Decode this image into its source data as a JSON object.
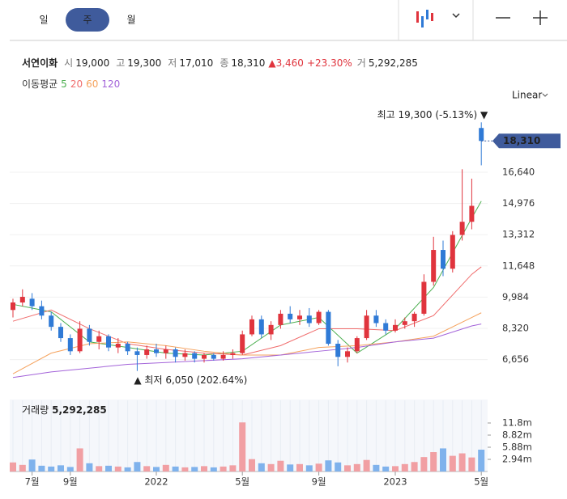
{
  "tabs": {
    "items": [
      "일",
      "주",
      "월"
    ],
    "selected": 1
  },
  "quote": {
    "name": "서연이화",
    "fields": [
      {
        "label": "시",
        "value": "19,000"
      },
      {
        "label": "고",
        "value": "19,300"
      },
      {
        "label": "저",
        "value": "17,010"
      },
      {
        "label": "종",
        "value": "18,310"
      }
    ],
    "change": "▲3,460",
    "change_pct": "+23.30%",
    "volume_label": "거",
    "volume": "5,292,285"
  },
  "ma_legend": "이동평균",
  "scale_button": "Linear",
  "chart_data": {
    "type": "candlestick",
    "categories": [
      null,
      null,
      "7월",
      null,
      null,
      null,
      "9월",
      null,
      null,
      null,
      null,
      null,
      null,
      null,
      null,
      "2022",
      null,
      null,
      null,
      null,
      null,
      null,
      null,
      null,
      "5월",
      null,
      null,
      null,
      null,
      null,
      null,
      null,
      "9월",
      null,
      null,
      null,
      null,
      null,
      null,
      null,
      "2023",
      null,
      null,
      null,
      null,
      null,
      null,
      null,
      null,
      "5월"
    ],
    "open": [
      9300,
      9700,
      9900,
      9500,
      9000,
      8400,
      7800,
      7100,
      8300,
      7600,
      7900,
      7300,
      7500,
      7100,
      6900,
      7200,
      7000,
      7200,
      6800,
      7000,
      6700,
      6900,
      6700,
      6900,
      7000,
      8000,
      8800,
      8000,
      8500,
      9100,
      8800,
      9000,
      8600,
      9200,
      7500,
      6800,
      7100,
      7800,
      9000,
      8600,
      8200,
      8500,
      8700,
      9100,
      10800,
      12500,
      11500,
      13300,
      14000,
      19000
    ],
    "high": [
      9900,
      10400,
      10200,
      9800,
      9200,
      8600,
      8000,
      8700,
      8500,
      8200,
      8000,
      7800,
      7600,
      7300,
      7400,
      7500,
      7400,
      7300,
      7200,
      7100,
      7000,
      7000,
      7100,
      7200,
      8200,
      9000,
      9000,
      8700,
      9300,
      9500,
      9300,
      9400,
      9300,
      9300,
      7700,
      7300,
      7900,
      9300,
      9300,
      8800,
      8800,
      8900,
      9200,
      11200,
      13200,
      13000,
      13500,
      16800,
      16300,
      19300
    ],
    "low": [
      8900,
      9500,
      9300,
      8800,
      8200,
      7600,
      6900,
      7000,
      7400,
      7200,
      7100,
      7000,
      6900,
      6050,
      6700,
      6800,
      6700,
      6500,
      6600,
      6500,
      6500,
      6600,
      6600,
      6700,
      6900,
      7900,
      7800,
      7700,
      8300,
      8600,
      8500,
      8400,
      8500,
      7400,
      6300,
      6500,
      7000,
      7700,
      8400,
      8000,
      8100,
      8300,
      8400,
      9000,
      10600,
      11100,
      11300,
      13000,
      13600,
      17010
    ],
    "close": [
      9700,
      10000,
      9500,
      9000,
      8400,
      7800,
      7100,
      8300,
      7600,
      7900,
      7300,
      7500,
      7100,
      6900,
      7200,
      7000,
      7200,
      6800,
      7000,
      6700,
      6900,
      6700,
      6900,
      7000,
      8000,
      8800,
      8000,
      8500,
      9100,
      8800,
      9000,
      8600,
      9200,
      7500,
      6800,
      7100,
      7800,
      9000,
      8600,
      8200,
      8500,
      8700,
      9100,
      10800,
      12500,
      11500,
      13300,
      14000,
      14850,
      18310
    ],
    "up_color": "#e0343d",
    "down_color": "#2f7ad6",
    "ylim": [
      4915,
      20218
    ],
    "yticks": [
      {
        "value": 6656,
        "label": "6,656"
      },
      {
        "value": 8320,
        "label": "8,320"
      },
      {
        "value": 9984,
        "label": "9,984"
      },
      {
        "value": 11648,
        "label": "11,648"
      },
      {
        "value": 13312,
        "label": "13,312"
      },
      {
        "value": 14976,
        "label": "14,976"
      },
      {
        "value": 16640,
        "label": "16,640"
      }
    ],
    "grid": true,
    "last_price": {
      "value": 18310,
      "label": "18,310"
    },
    "high_note": "최고 19,300 (-5.13%) ▼",
    "low_note": "▲ 최저 6,050 (202.64%)",
    "ma_x": [
      0,
      4,
      8,
      12,
      16,
      20,
      24,
      28,
      32,
      36,
      40,
      44,
      48,
      49
    ],
    "ma_series": [
      {
        "name": "5",
        "color": "#4caf50",
        "values": [
          9600,
          9200,
          7600,
          7300,
          7000,
          6900,
          7100,
          8500,
          8900,
          7000,
          8300,
          10500,
          14200,
          15100
        ]
      },
      {
        "name": "20",
        "color": "#f06c6c",
        "values": [
          8700,
          9300,
          8300,
          7500,
          7200,
          7000,
          6900,
          7400,
          8300,
          8300,
          8200,
          9000,
          11200,
          11600
        ]
      },
      {
        "name": "60",
        "color": "#f5a25d",
        "values": [
          5900,
          7000,
          7500,
          7600,
          7400,
          7100,
          6900,
          6900,
          7300,
          7400,
          7600,
          7900,
          8900,
          9150
        ]
      },
      {
        "name": "120",
        "color": "#a363d9",
        "values": [
          5700,
          6000,
          6200,
          6400,
          6500,
          6600,
          6700,
          6900,
          7100,
          7300,
          7600,
          7800,
          8450,
          8550
        ]
      }
    ],
    "volume_title": "거래량",
    "volume_text": "5,292,285",
    "volume": [
      2200000,
      1600000,
      2900000,
      1400000,
      1200000,
      1500000,
      1100000,
      5600000,
      2000000,
      1300000,
      1400000,
      1200000,
      1000000,
      2300000,
      1300000,
      1100000,
      1600000,
      1200000,
      1000000,
      1100000,
      1300000,
      1000000,
      1200000,
      1500000,
      11900000,
      3000000,
      2000000,
      1800000,
      2600000,
      1700000,
      1800000,
      1500000,
      1900000,
      2700000,
      2200000,
      1500000,
      1800000,
      2800000,
      1600000,
      1200000,
      1300000,
      1800000,
      2300000,
      3500000,
      4700000,
      5600000,
      3800000,
      4400000,
      3400000,
      5292285
    ],
    "vol_up_color": "#f19fa3",
    "vol_down_color": "#7fb2ec",
    "vol_ylim": [
      0,
      17250000
    ],
    "vol_yticks": [
      {
        "value": 2940000,
        "label": "2.94m"
      },
      {
        "value": 5880000,
        "label": "5.88m"
      },
      {
        "value": 8820000,
        "label": "8.82m"
      },
      {
        "value": 11760000,
        "label": "11.8m"
      }
    ]
  }
}
